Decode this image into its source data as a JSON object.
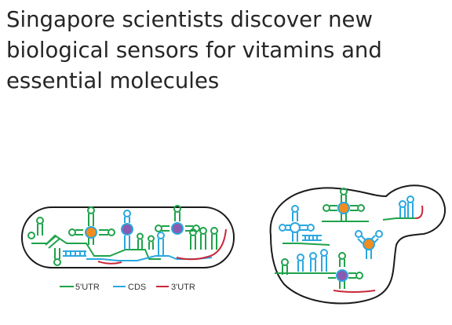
{
  "headline": {
    "line1": "Singapore scientists discover new",
    "line2": "biological sensors for vitamins and",
    "line3": "essential molecules"
  },
  "figure": {
    "legend": [
      {
        "label": "5'UTR",
        "color": "#1fa24a"
      },
      {
        "label": "CDS",
        "color": "#2aa7e0"
      },
      {
        "label": "3'UTR",
        "color": "#c8283a"
      }
    ],
    "colors": {
      "outline": "#1a1a1a",
      "utr5": "#1fa24a",
      "cds": "#2aa7e0",
      "utr3": "#c8283a",
      "ligand_orange": "#f28c1e",
      "ligand_purple": "#8a5bb0"
    }
  }
}
